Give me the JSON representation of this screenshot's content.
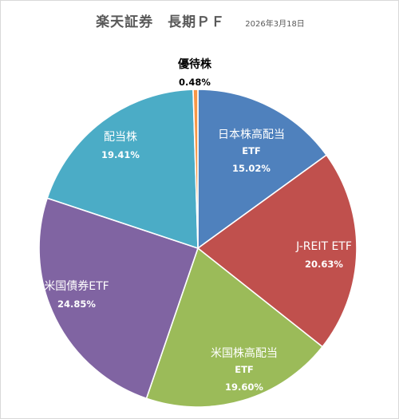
{
  "title": {
    "main": "楽天証券　長期ＰＦ",
    "date": "2026年3月18日"
  },
  "chart_data": {
    "type": "pie",
    "slices": [
      {
        "name": "日本株高配当",
        "name2": "ETF",
        "label": "15.02%",
        "value": 15.02,
        "color": "#4f81bd"
      },
      {
        "name": "J-REIT ETF",
        "label": "20.63%",
        "value": 20.63,
        "color": "#c0504d"
      },
      {
        "name": "米国株高配当",
        "name2": "ETF",
        "label": "19.60%",
        "value": 19.6,
        "color": "#9bbb59"
      },
      {
        "name": "米国債券ETF",
        "label": "24.85%",
        "value": 24.85,
        "color": "#8064a2"
      },
      {
        "name": "配当株",
        "label": "19.41%",
        "value": 19.41,
        "color": "#4bacc6"
      },
      {
        "name": "優待株",
        "label": "0.48%",
        "value": 0.48,
        "color": "#f79646"
      }
    ]
  }
}
